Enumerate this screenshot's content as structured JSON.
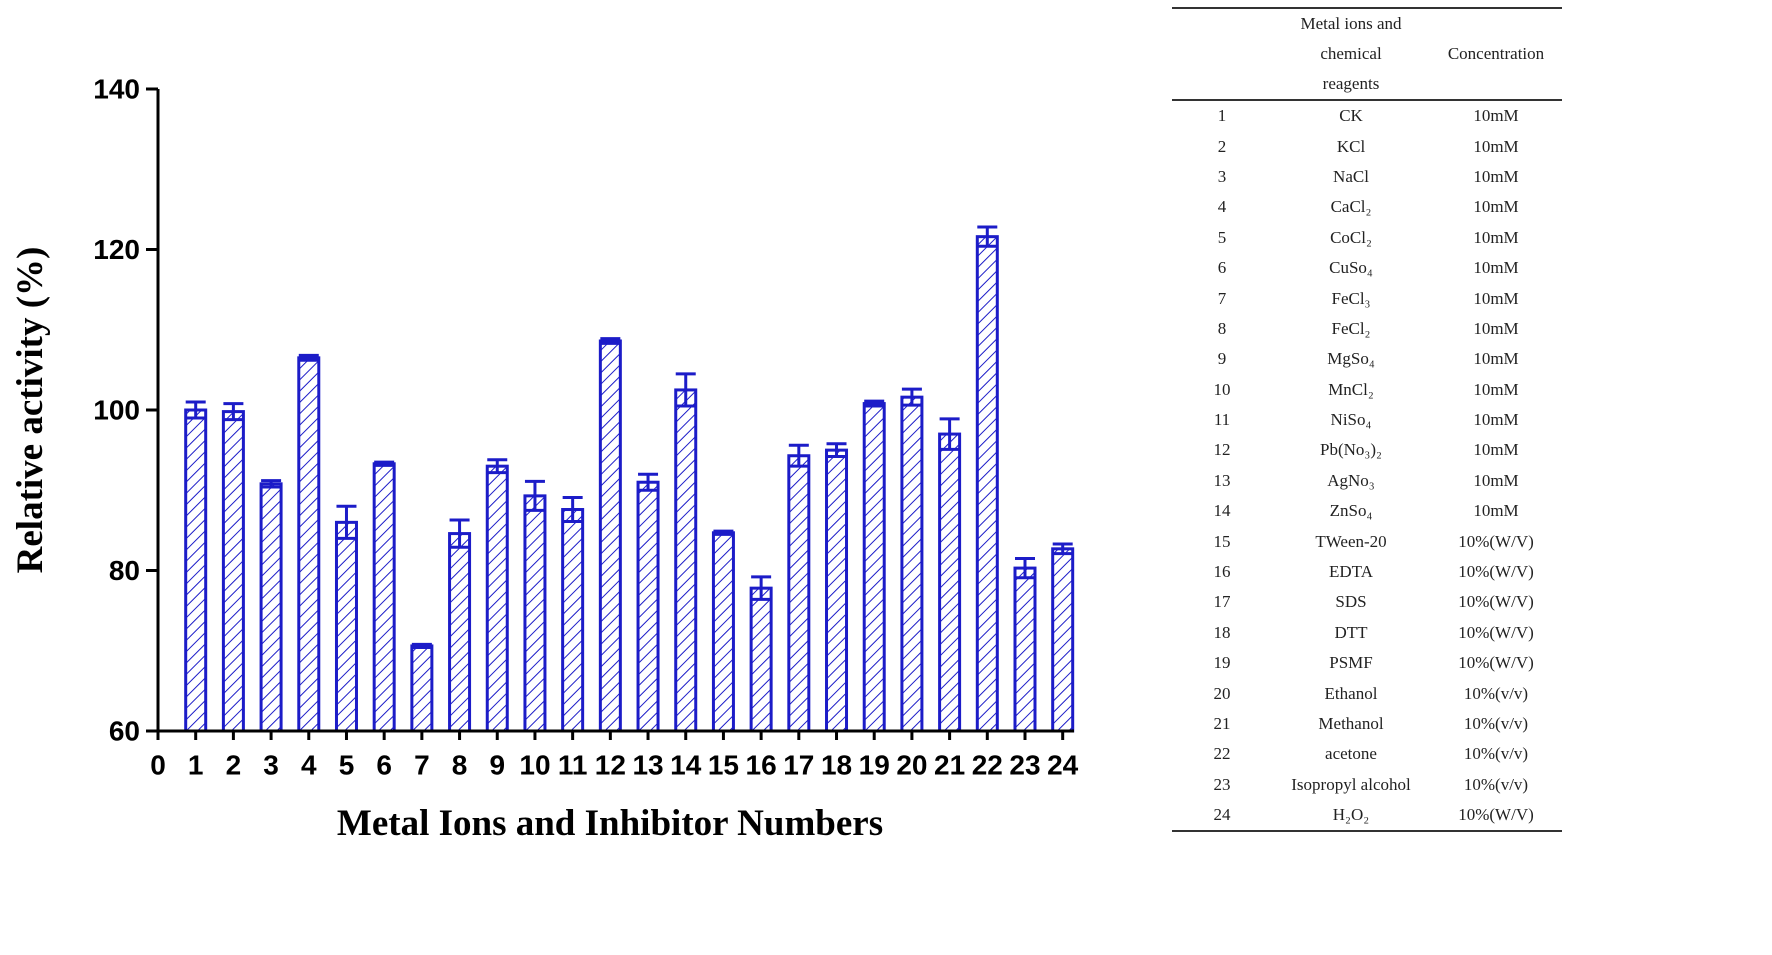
{
  "chart_data": {
    "type": "bar",
    "x_label": "Metal Ions and Inhibitor Numbers",
    "y_label": "Relative activity (%)",
    "x": [
      1,
      2,
      3,
      4,
      5,
      6,
      7,
      8,
      9,
      10,
      11,
      12,
      13,
      14,
      15,
      16,
      17,
      18,
      19,
      20,
      21,
      22,
      23,
      24
    ],
    "values": [
      100,
      99.8,
      90.8,
      106.5,
      86,
      93.3,
      70.6,
      84.6,
      93,
      89.3,
      87.6,
      108.6,
      91,
      102.5,
      84.7,
      77.8,
      94.3,
      95,
      100.8,
      101.6,
      97,
      121.6,
      80.3,
      82.7
    ],
    "errors": [
      1,
      1,
      0.4,
      0.3,
      2,
      0.2,
      0.2,
      1.7,
      0.8,
      1.8,
      1.5,
      0.3,
      1,
      2,
      0.2,
      1.4,
      1.3,
      0.8,
      0.3,
      1,
      1.9,
      1.2,
      1.2,
      0.6
    ],
    "color": "#1c1cc8",
    "xlim": [
      0,
      24.3
    ],
    "xticks": [
      0,
      1,
      2,
      3,
      4,
      5,
      6,
      7,
      8,
      9,
      10,
      11,
      12,
      13,
      14,
      15,
      16,
      17,
      18,
      19,
      20,
      21,
      22,
      23,
      24
    ],
    "ylim": [
      60,
      140
    ],
    "yticks": [
      60,
      80,
      100,
      120,
      140
    ]
  },
  "table": {
    "header": [
      "Metal ions and chemical reagents",
      "Concentration"
    ],
    "rows": [
      [
        "1",
        "CK",
        "10mM"
      ],
      [
        "2",
        "KCl",
        "10mM"
      ],
      [
        "3",
        "NaCl",
        "10mM"
      ],
      [
        "4",
        "CaCl₂",
        "10mM"
      ],
      [
        "5",
        "CoCl₂",
        "10mM"
      ],
      [
        "6",
        "CuSo₄",
        "10mM"
      ],
      [
        "7",
        "FeCl₃",
        "10mM"
      ],
      [
        "8",
        "FeCl₂",
        "10mM"
      ],
      [
        "9",
        "MgSo₄",
        "10mM"
      ],
      [
        "10",
        "MnCl₂",
        "10mM"
      ],
      [
        "11",
        "NiSo₄",
        "10mM"
      ],
      [
        "12",
        "Pb(No₃)₂",
        "10mM"
      ],
      [
        "13",
        "AgNo₃",
        "10mM"
      ],
      [
        "14",
        "ZnSo₄",
        "10mM"
      ],
      [
        "15",
        "TWeen-20",
        "10%(W/V)"
      ],
      [
        "16",
        "EDTA",
        "10%(W/V)"
      ],
      [
        "17",
        "SDS",
        "10%(W/V)"
      ],
      [
        "18",
        "DTT",
        "10%(W/V)"
      ],
      [
        "19",
        "PSMF",
        "10%(W/V)"
      ],
      [
        "20",
        "Ethanol",
        "10%(v/v)"
      ],
      [
        "21",
        "Methanol",
        "10%(v/v)"
      ],
      [
        "22",
        "acetone",
        "10%(v/v)"
      ],
      [
        "23",
        "Isopropyl alcohol",
        "10%(v/v)"
      ],
      [
        "24",
        "H₂O₂",
        "10%(W/V)"
      ]
    ]
  }
}
